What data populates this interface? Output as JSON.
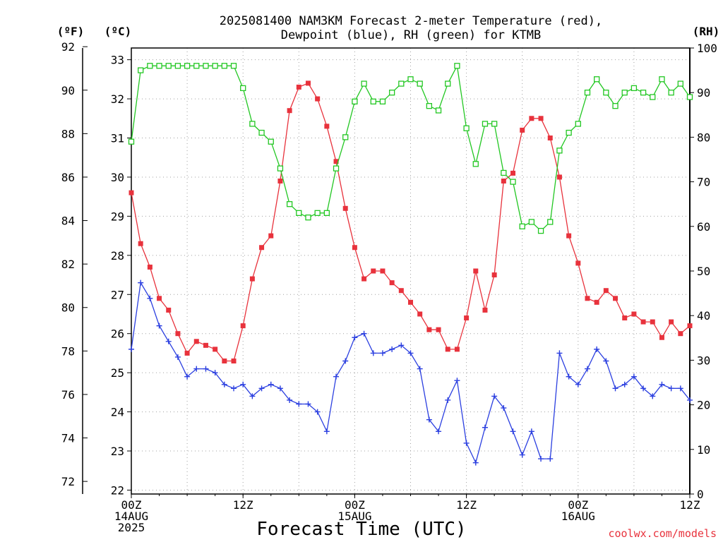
{
  "chart_data": {
    "type": "line",
    "title_lines": [
      "2025081400 NAM3KM Forecast 2-meter Temperature (red),",
      "Dewpoint (blue), RH (green) for KTMB"
    ],
    "xlabel": "Forecast Time (UTC)",
    "credit": "coolwx.com/models",
    "unit_labels": {
      "fahrenheit": "(ºF)",
      "celsius": "(ºC)",
      "rh": "(RH)"
    },
    "x_hours_range": [
      0,
      60
    ],
    "x_ticks": [
      {
        "hour": 0,
        "lines": [
          "00Z",
          "14AUG",
          "2025"
        ]
      },
      {
        "hour": 12,
        "lines": [
          "12Z"
        ]
      },
      {
        "hour": 24,
        "lines": [
          "00Z",
          "15AUG"
        ]
      },
      {
        "hour": 36,
        "lines": [
          "12Z"
        ]
      },
      {
        "hour": 48,
        "lines": [
          "00Z",
          "16AUG"
        ]
      },
      {
        "hour": 60,
        "lines": [
          "12Z"
        ]
      }
    ],
    "y_celsius_range": [
      21.9,
      33.3
    ],
    "y_celsius_ticks": [
      22,
      23,
      24,
      25,
      26,
      27,
      28,
      29,
      30,
      31,
      32,
      33
    ],
    "y_fahrenheit_ticks": [
      72,
      74,
      76,
      78,
      80,
      82,
      84,
      86,
      88,
      90,
      92
    ],
    "y_rh_range": [
      0,
      100
    ],
    "y_rh_ticks": [
      0,
      10,
      20,
      30,
      40,
      50,
      60,
      70,
      80,
      90,
      100
    ],
    "grid": true,
    "series": [
      {
        "name": "Temperature",
        "color": "#e8323c",
        "marker": "filled-square",
        "axis": "celsius",
        "values": [
          29.6,
          28.3,
          27.7,
          26.9,
          26.6,
          26.0,
          25.5,
          25.8,
          25.7,
          25.6,
          25.3,
          25.3,
          26.2,
          27.4,
          28.2,
          28.5,
          29.9,
          31.7,
          32.3,
          32.4,
          32.0,
          31.3,
          30.4,
          29.2,
          28.2,
          27.4,
          27.6,
          27.6,
          27.3,
          27.1,
          26.8,
          26.5,
          26.1,
          26.1,
          25.6,
          25.6,
          26.4,
          27.6,
          26.6,
          27.5,
          29.9,
          30.1,
          31.2,
          31.5,
          31.5,
          31.0,
          30.0,
          28.5,
          27.8,
          26.9,
          26.8,
          27.1,
          26.9,
          26.4,
          26.5,
          26.3,
          26.3,
          25.9,
          26.3,
          26.0,
          26.2
        ]
      },
      {
        "name": "Dewpoint",
        "color": "#2b3fe0",
        "marker": "plus",
        "axis": "celsius",
        "values": [
          25.6,
          27.3,
          26.9,
          26.2,
          25.8,
          25.4,
          24.9,
          25.1,
          25.1,
          25.0,
          24.7,
          24.6,
          24.7,
          24.4,
          24.6,
          24.7,
          24.6,
          24.3,
          24.2,
          24.2,
          24.0,
          23.5,
          24.9,
          25.3,
          25.9,
          26.0,
          25.5,
          25.5,
          25.6,
          25.7,
          25.5,
          25.1,
          23.8,
          23.5,
          24.3,
          24.8,
          23.2,
          22.7,
          23.6,
          24.4,
          24.1,
          23.5,
          22.9,
          23.5,
          22.8,
          22.8,
          25.5,
          24.9,
          24.7,
          25.1,
          25.6,
          25.3,
          24.6,
          24.7,
          24.9,
          24.6,
          24.4,
          24.7,
          24.6,
          24.6,
          24.3
        ]
      },
      {
        "name": "RH",
        "color": "#22c722",
        "marker": "open-square",
        "axis": "rh",
        "values": [
          79,
          95,
          96,
          96,
          96,
          96,
          96,
          96,
          96,
          96,
          96,
          96,
          91,
          83,
          81,
          79,
          73,
          65,
          63,
          62,
          63,
          63,
          73,
          80,
          88,
          92,
          88,
          88,
          90,
          92,
          93,
          92,
          87,
          86,
          92,
          96,
          82,
          74,
          83,
          83,
          72,
          70,
          60,
          61,
          59,
          61,
          77,
          81,
          83,
          90,
          93,
          90,
          87,
          90,
          91,
          90,
          89,
          93,
          90,
          92,
          89
        ]
      }
    ]
  }
}
